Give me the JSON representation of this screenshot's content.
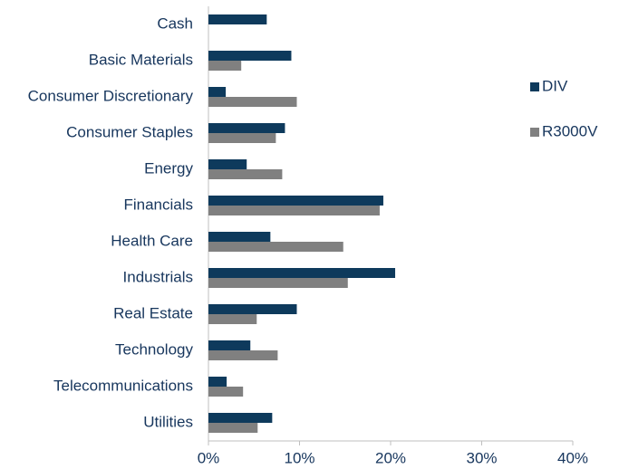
{
  "chart_data": {
    "type": "bar",
    "orientation": "horizontal",
    "categories": [
      "Cash",
      "Basic Materials",
      "Consumer Discretionary",
      "Consumer Staples",
      "Energy",
      "Financials",
      "Health Care",
      "Industrials",
      "Real Estate",
      "Technology",
      "Telecommunications",
      "Utilities"
    ],
    "series": [
      {
        "name": "DIV",
        "color": "#0e3a5c",
        "values": [
          6.4,
          9.1,
          1.9,
          8.4,
          4.2,
          19.2,
          6.8,
          20.5,
          9.7,
          4.6,
          2.0,
          7.0
        ]
      },
      {
        "name": "R3000V",
        "color": "#808080",
        "values": [
          0,
          3.6,
          9.7,
          7.4,
          8.1,
          18.8,
          14.8,
          15.3,
          5.3,
          7.6,
          3.8,
          5.4
        ]
      }
    ],
    "xlim": [
      0,
      40
    ],
    "xticks": [
      {
        "value": 0,
        "label": "0%"
      },
      {
        "value": 10,
        "label": "10%"
      },
      {
        "value": 20,
        "label": "20%"
      },
      {
        "value": 30,
        "label": "30%"
      },
      {
        "value": 40,
        "label": "40%"
      }
    ],
    "legend": "right",
    "grid": false
  }
}
